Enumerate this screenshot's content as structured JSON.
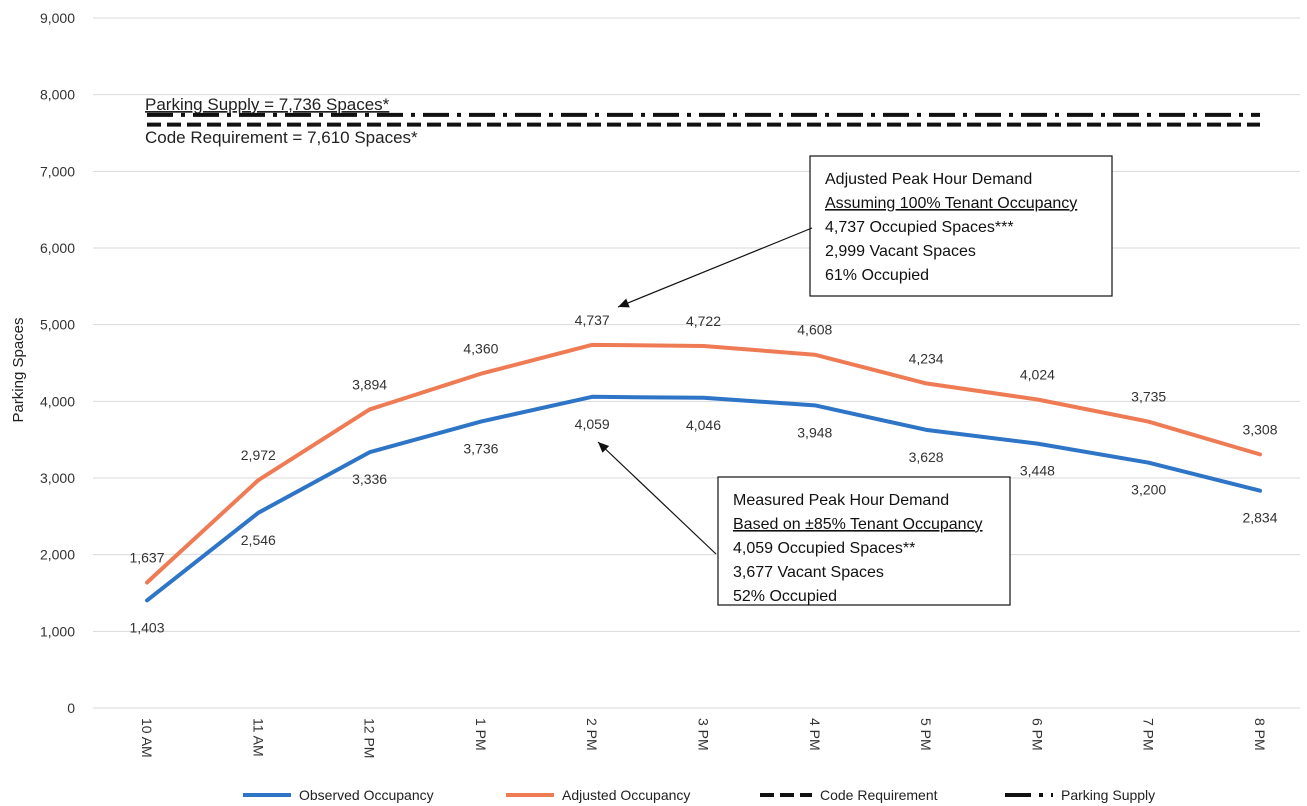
{
  "chart_data": {
    "type": "line",
    "ylabel": "Parking Spaces",
    "xlabel": "",
    "categories": [
      "10 AM",
      "11 AM",
      "12 PM",
      "1 PM",
      "2 PM",
      "3 PM",
      "4 PM",
      "5 PM",
      "6 PM",
      "7 PM",
      "8 PM"
    ],
    "ylim": [
      0,
      9000
    ],
    "yticks": [
      0,
      1000,
      2000,
      3000,
      4000,
      5000,
      6000,
      7000,
      8000,
      9000
    ],
    "ytick_labels": [
      "0",
      "1,000",
      "2,000",
      "3,000",
      "4,000",
      "5,000",
      "6,000",
      "7,000",
      "8,000",
      "9,000"
    ],
    "grid": true,
    "legend_position": "bottom",
    "series": [
      {
        "name": "Observed Occupancy",
        "color": "#2e75c7",
        "values": [
          1403,
          2546,
          3336,
          3736,
          4059,
          4046,
          3948,
          3628,
          3448,
          3200,
          2834
        ],
        "labels": [
          "1,403",
          "2,546",
          "3,336",
          "3,736",
          "4,059",
          "4,046",
          "3,948",
          "3,628",
          "3,448",
          "3,200",
          "2,834"
        ]
      },
      {
        "name": "Adjusted Occupancy",
        "color": "#ef7b55",
        "values": [
          1637,
          2972,
          3894,
          4360,
          4737,
          4722,
          4608,
          4234,
          4024,
          3735,
          3308
        ],
        "labels": [
          "1,637",
          "2,972",
          "3,894",
          "4,360",
          "4,737",
          "4,722",
          "4,608",
          "4,234",
          "4,024",
          "3,735",
          "3,308"
        ]
      },
      {
        "name": "Code Requirement",
        "color": "#111111",
        "style": "dashed",
        "values": [
          7610,
          7610,
          7610,
          7610,
          7610,
          7610,
          7610,
          7610,
          7610,
          7610,
          7610
        ]
      },
      {
        "name": "Parking Supply",
        "color": "#111111",
        "style": "dash-dot",
        "values": [
          7736,
          7736,
          7736,
          7736,
          7736,
          7736,
          7736,
          7736,
          7736,
          7736,
          7736
        ]
      }
    ],
    "reference_labels": {
      "supply": "Parking Supply = 7,736 Spaces*",
      "code": "Code Requirement = 7,610 Spaces*"
    },
    "annotations": [
      {
        "target_series": "Adjusted Occupancy",
        "target_category": "2 PM",
        "lines": [
          "Adjusted Peak Hour Demand",
          "Assuming 100% Tenant Occupancy",
          "4,737 Occupied Spaces***",
          "2,999 Vacant Spaces",
          "61% Occupied"
        ],
        "underlined_line": 1
      },
      {
        "target_series": "Observed Occupancy",
        "target_category": "2 PM",
        "lines": [
          "Measured Peak Hour Demand",
          "Based on ±85% Tenant Occupancy",
          "4,059 Occupied Spaces**",
          "3,677 Vacant Spaces",
          "52% Occupied"
        ],
        "underlined_line": 1
      }
    ]
  }
}
